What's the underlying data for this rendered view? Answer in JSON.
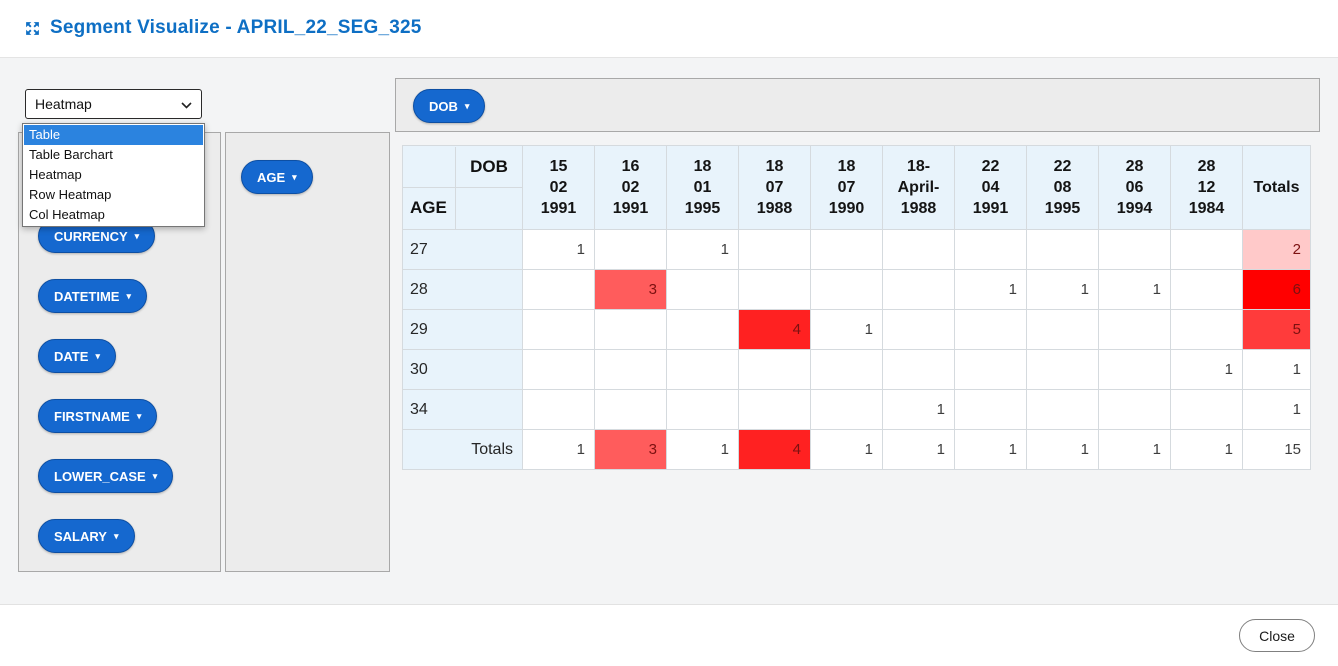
{
  "header": {
    "title": "Segment Visualize - APRIL_22_SEG_325"
  },
  "controls": {
    "chart_type_select": {
      "value": "Heatmap",
      "options": [
        {
          "label": "Table",
          "highlighted": true
        },
        {
          "label": "Table Barchart",
          "highlighted": false
        },
        {
          "label": "Heatmap",
          "highlighted": false
        },
        {
          "label": "Row Heatmap",
          "highlighted": false
        },
        {
          "label": "Col Heatmap",
          "highlighted": false
        }
      ]
    }
  },
  "fields": {
    "unused": [
      "CURRENCY",
      "DATETIME",
      "DATE",
      "FIRSTNAME",
      "LOWER_CASE",
      "SALARY"
    ],
    "row_fields": [
      "AGE"
    ],
    "col_fields": [
      "DOB"
    ]
  },
  "chart_data": {
    "type": "heatmap",
    "row_dimension": "AGE",
    "col_dimension": "DOB",
    "columns": [
      "15 02 1991",
      "16 02 1991",
      "18 01 1995",
      "18 07 1988",
      "18 07 1990",
      "18-April-1988",
      "22 04 1991",
      "22 08 1995",
      "28 06 1994",
      "28 12 1984"
    ],
    "rows": [
      "27",
      "28",
      "29",
      "30",
      "34"
    ],
    "values": [
      [
        1,
        null,
        1,
        null,
        null,
        null,
        null,
        null,
        null,
        null
      ],
      [
        null,
        3,
        null,
        null,
        null,
        null,
        1,
        1,
        1,
        null
      ],
      [
        null,
        null,
        null,
        4,
        1,
        null,
        null,
        null,
        null,
        null
      ],
      [
        null,
        null,
        null,
        null,
        null,
        null,
        null,
        null,
        null,
        1
      ],
      [
        null,
        null,
        null,
        null,
        null,
        1,
        null,
        null,
        null,
        null
      ]
    ],
    "row_totals": [
      2,
      6,
      5,
      1,
      1
    ],
    "col_totals": [
      1,
      3,
      1,
      4,
      1,
      1,
      1,
      1,
      1,
      1
    ],
    "grand_total": 15,
    "totals_label": "Totals",
    "heat_cells": [
      {
        "row": 0,
        "col": 10,
        "bg": "#ffc9c9"
      },
      {
        "row": 1,
        "col": 1,
        "bg": "#ff5c5c"
      },
      {
        "row": 1,
        "col": 10,
        "bg": "#ff0000"
      },
      {
        "row": 2,
        "col": 3,
        "bg": "#ff2121"
      },
      {
        "row": 2,
        "col": 10,
        "bg": "#ff3b3b"
      },
      {
        "row": 5,
        "col": 1,
        "bg": "#ff5c5c"
      },
      {
        "row": 5,
        "col": 3,
        "bg": "#ff2121"
      }
    ],
    "heat_text_color": "#7c1111"
  },
  "footer": {
    "close_label": "Close"
  },
  "colors": {
    "accent_blue": "#0e6fc4",
    "pill_blue": "#1568cf",
    "dropdown_highlight": "#2b83df",
    "table_header_bg": "#e8f3fb"
  }
}
